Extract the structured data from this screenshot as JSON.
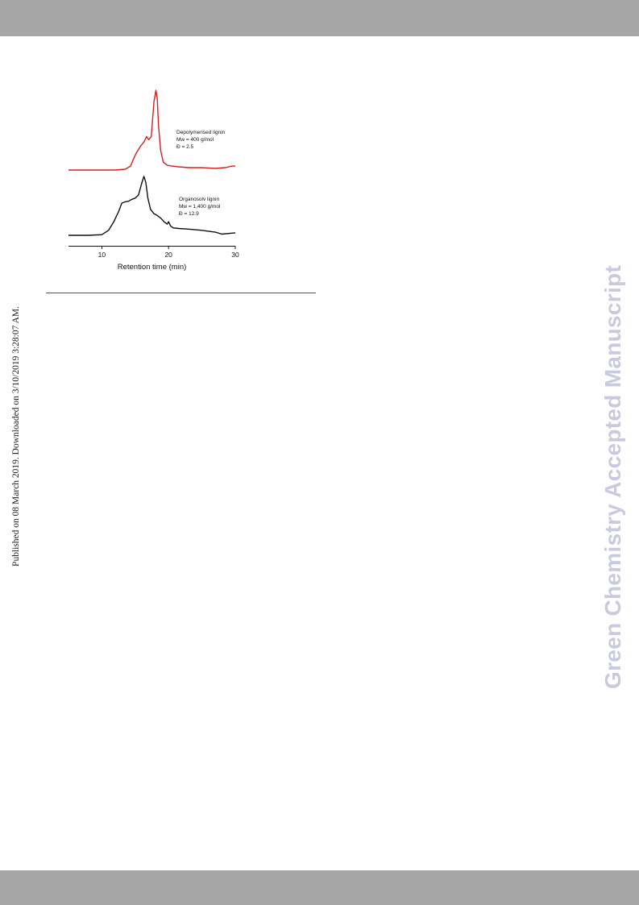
{
  "page": {
    "side_note": "Published on 08 March 2019. Downloaded on 3/10/2019 3:28:07 AM.",
    "watermark": "Green Chemistry Accepted Manuscript"
  },
  "chart_data": {
    "type": "line",
    "title": "",
    "xlabel": "Retention time (min)",
    "ylabel": "",
    "xlim": [
      5,
      30
    ],
    "xticks": [
      10,
      20,
      30
    ],
    "grid": false,
    "series": [
      {
        "name": "Depolymerised lignin",
        "color": "#d62020",
        "annotation": [
          "Depolymerised lignin",
          "Mw = 400 g/mol",
          "Đ = 2.5"
        ],
        "x": [
          5.0,
          9.0,
          12.0,
          13.5,
          14.3,
          14.8,
          15.2,
          15.8,
          16.3,
          16.7,
          17.0,
          17.4,
          17.8,
          18.1,
          18.3,
          18.5,
          18.8,
          19.2,
          19.8,
          20.5,
          21.5,
          23.0,
          25.0,
          27.0,
          28.5,
          29.5,
          30.0
        ],
        "y": [
          0.0,
          0.0,
          0.0,
          0.01,
          0.05,
          0.15,
          0.22,
          0.3,
          0.35,
          0.42,
          0.38,
          0.42,
          0.85,
          1.0,
          0.9,
          0.55,
          0.25,
          0.1,
          0.06,
          0.05,
          0.04,
          0.03,
          0.03,
          0.02,
          0.03,
          0.05,
          0.05
        ]
      },
      {
        "name": "Organosolv lignin",
        "color": "#111111",
        "annotation": [
          "Organosolv lignin",
          "Mw = 1,400 g/mol",
          "Đ = 12.9"
        ],
        "x": [
          5.0,
          8.0,
          10.0,
          11.0,
          11.8,
          12.5,
          13.0,
          13.5,
          14.0,
          14.5,
          15.0,
          15.5,
          16.0,
          16.3,
          16.6,
          16.9,
          17.3,
          17.8,
          18.3,
          18.8,
          19.3,
          19.8,
          20.0,
          20.3,
          20.7,
          21.5,
          23.0,
          25.0,
          27.0,
          28.0,
          29.0,
          30.0
        ],
        "y": [
          0.0,
          0.0,
          0.01,
          0.08,
          0.22,
          0.38,
          0.52,
          0.54,
          0.55,
          0.58,
          0.6,
          0.65,
          0.85,
          0.95,
          0.85,
          0.6,
          0.42,
          0.35,
          0.32,
          0.28,
          0.22,
          0.18,
          0.22,
          0.15,
          0.12,
          0.11,
          0.1,
          0.08,
          0.05,
          0.02,
          0.03,
          0.04
        ]
      }
    ]
  }
}
